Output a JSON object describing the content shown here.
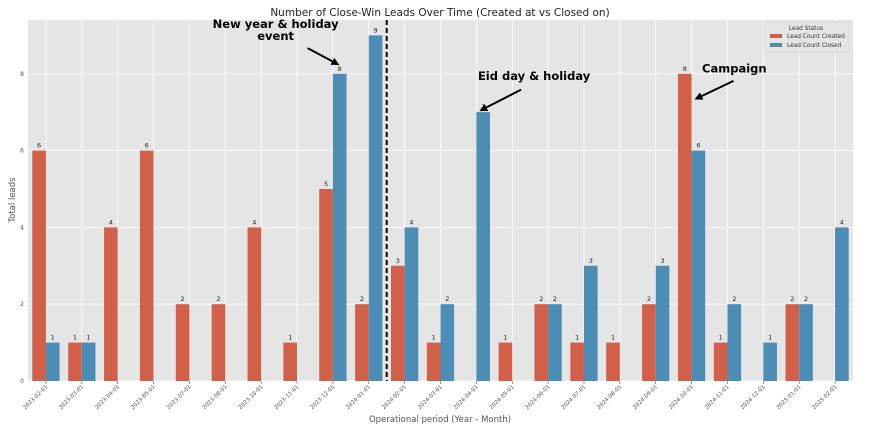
{
  "chart_data": {
    "type": "bar",
    "title": "Number of Close-Win Leads Over Time (Created at vs Closed on)",
    "xlabel": "Operational period (Year - Month)",
    "ylabel": "Total leads",
    "ylim": [
      0,
      9.4
    ],
    "yticks": [
      0,
      2,
      4,
      6,
      8
    ],
    "grid": true,
    "legend": {
      "title": "Lead Status",
      "placement": "top-right",
      "entries": [
        "Lead Count Created",
        "Lead Count Closed"
      ]
    },
    "colors": {
      "created": "#d1604a",
      "closed": "#4c8cb5",
      "background": "#e5e5e5"
    },
    "categories": [
      "2023-02-01",
      "2023-03-01",
      "2023-04-01",
      "2023-05-01",
      "2023-07-01",
      "2023-08-01",
      "2023-10-01",
      "2023-11-01",
      "2023-12-01",
      "2024-01-01",
      "2024-02-01",
      "2024-03-01",
      "2024-04-01",
      "2024-05-01",
      "2024-06-01",
      "2024-07-01",
      "2024-08-01",
      "2024-09-01",
      "2024-10-01",
      "2024-11-01",
      "2024-12-01",
      "2025-01-01",
      "2025-02-01"
    ],
    "series": [
      {
        "name": "Lead Count Created",
        "values": [
          6,
          1,
          4,
          6,
          2,
          2,
          4,
          1,
          5,
          2,
          3,
          1,
          0,
          1,
          2,
          1,
          1,
          2,
          8,
          1,
          0,
          2,
          0
        ]
      },
      {
        "name": "Lead Count Closed",
        "values": [
          1,
          1,
          0,
          0,
          0,
          0,
          0,
          0,
          8,
          9,
          4,
          2,
          7,
          0,
          2,
          3,
          0,
          3,
          6,
          2,
          1,
          2,
          4
        ]
      }
    ],
    "annotations": [
      {
        "text": [
          "New year & holiday",
          "event"
        ],
        "target_category": "2023-12-01",
        "target_value": 8.2
      },
      {
        "text": [
          "Eid day & holiday"
        ],
        "target_category": "2024-04-01",
        "target_value": 7.0
      },
      {
        "text": [
          "Campaign"
        ],
        "target_category": "2024-10-01",
        "target_value": 7.3
      }
    ],
    "vline": {
      "between": [
        "2024-01-01",
        "2024-02-01"
      ],
      "style": "dashed"
    }
  }
}
